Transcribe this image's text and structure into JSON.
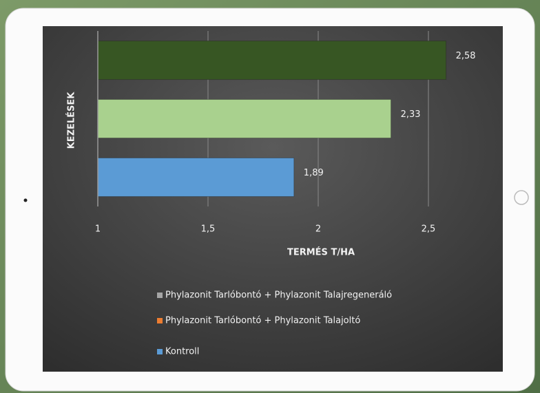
{
  "chart_data": {
    "type": "bar",
    "orientation": "horizontal",
    "xlabel": "TERMÉS T/HA",
    "ylabel": "KEZELÉSEK",
    "categories": [
      null,
      null,
      null
    ],
    "values": [
      2.58,
      2.33,
      1.89
    ],
    "value_labels": [
      "2,58",
      "2,33",
      "1,89"
    ],
    "colors": [
      "#375623",
      "#a9d18e",
      "#5b9bd5"
    ],
    "xlim": [
      1,
      2.8
    ],
    "xticks": [
      1,
      {
        "value": 1.5,
        "label": "1,5"
      },
      2,
      {
        "value": 2.5,
        "label": "2,5"
      }
    ],
    "grid": true,
    "legend": [
      {
        "name": "Phylazonit Tarlóbontó + Phylazonit Talajregeneráló",
        "color": "#a5a5a5"
      },
      {
        "name": "Phylazonit Tarlóbontó + Phylazonit Talajoltó",
        "color": "#ed7d31"
      },
      {
        "name": "Kontroll",
        "color": "#5b9bd5"
      }
    ]
  }
}
